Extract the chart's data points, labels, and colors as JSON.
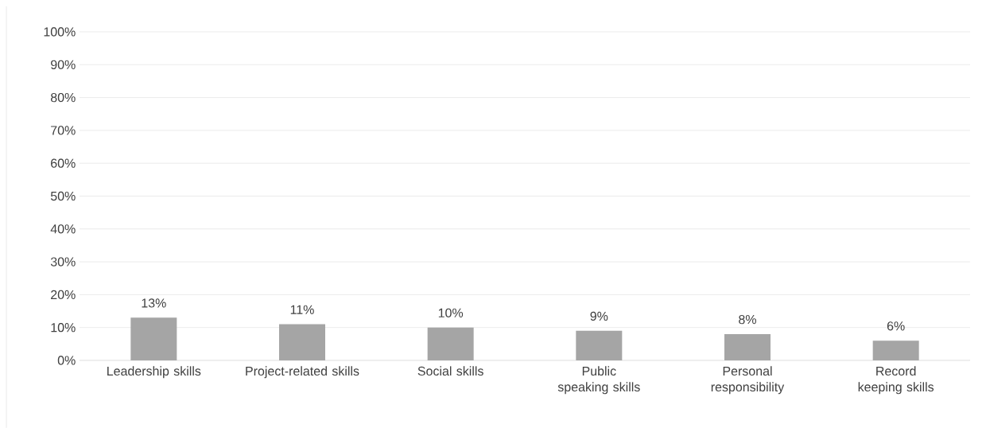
{
  "chart_data": {
    "type": "bar",
    "categories": [
      "Leadership skills",
      "Project-related skills",
      "Social skills",
      "Public speaking skills",
      "Personal responsibility",
      "Record keeping skills"
    ],
    "values": [
      13,
      11,
      10,
      9,
      8,
      6
    ],
    "value_labels": [
      "13%",
      "11%",
      "10%",
      "9%",
      "8%",
      "6%"
    ],
    "color": "#a5a5a5",
    "ylim": [
      0,
      100
    ],
    "yticks": [
      {
        "value": 0,
        "label": "0%"
      },
      {
        "value": 10,
        "label": "10%"
      },
      {
        "value": 20,
        "label": "20%"
      },
      {
        "value": 30,
        "label": "30%"
      },
      {
        "value": 40,
        "label": "40%"
      },
      {
        "value": 50,
        "label": "50%"
      },
      {
        "value": 60,
        "label": "60%"
      },
      {
        "value": 70,
        "label": "70%"
      },
      {
        "value": 80,
        "label": "80%"
      },
      {
        "value": 90,
        "label": "90%"
      },
      {
        "value": 100,
        "label": "100%"
      }
    ],
    "grid": "y"
  }
}
